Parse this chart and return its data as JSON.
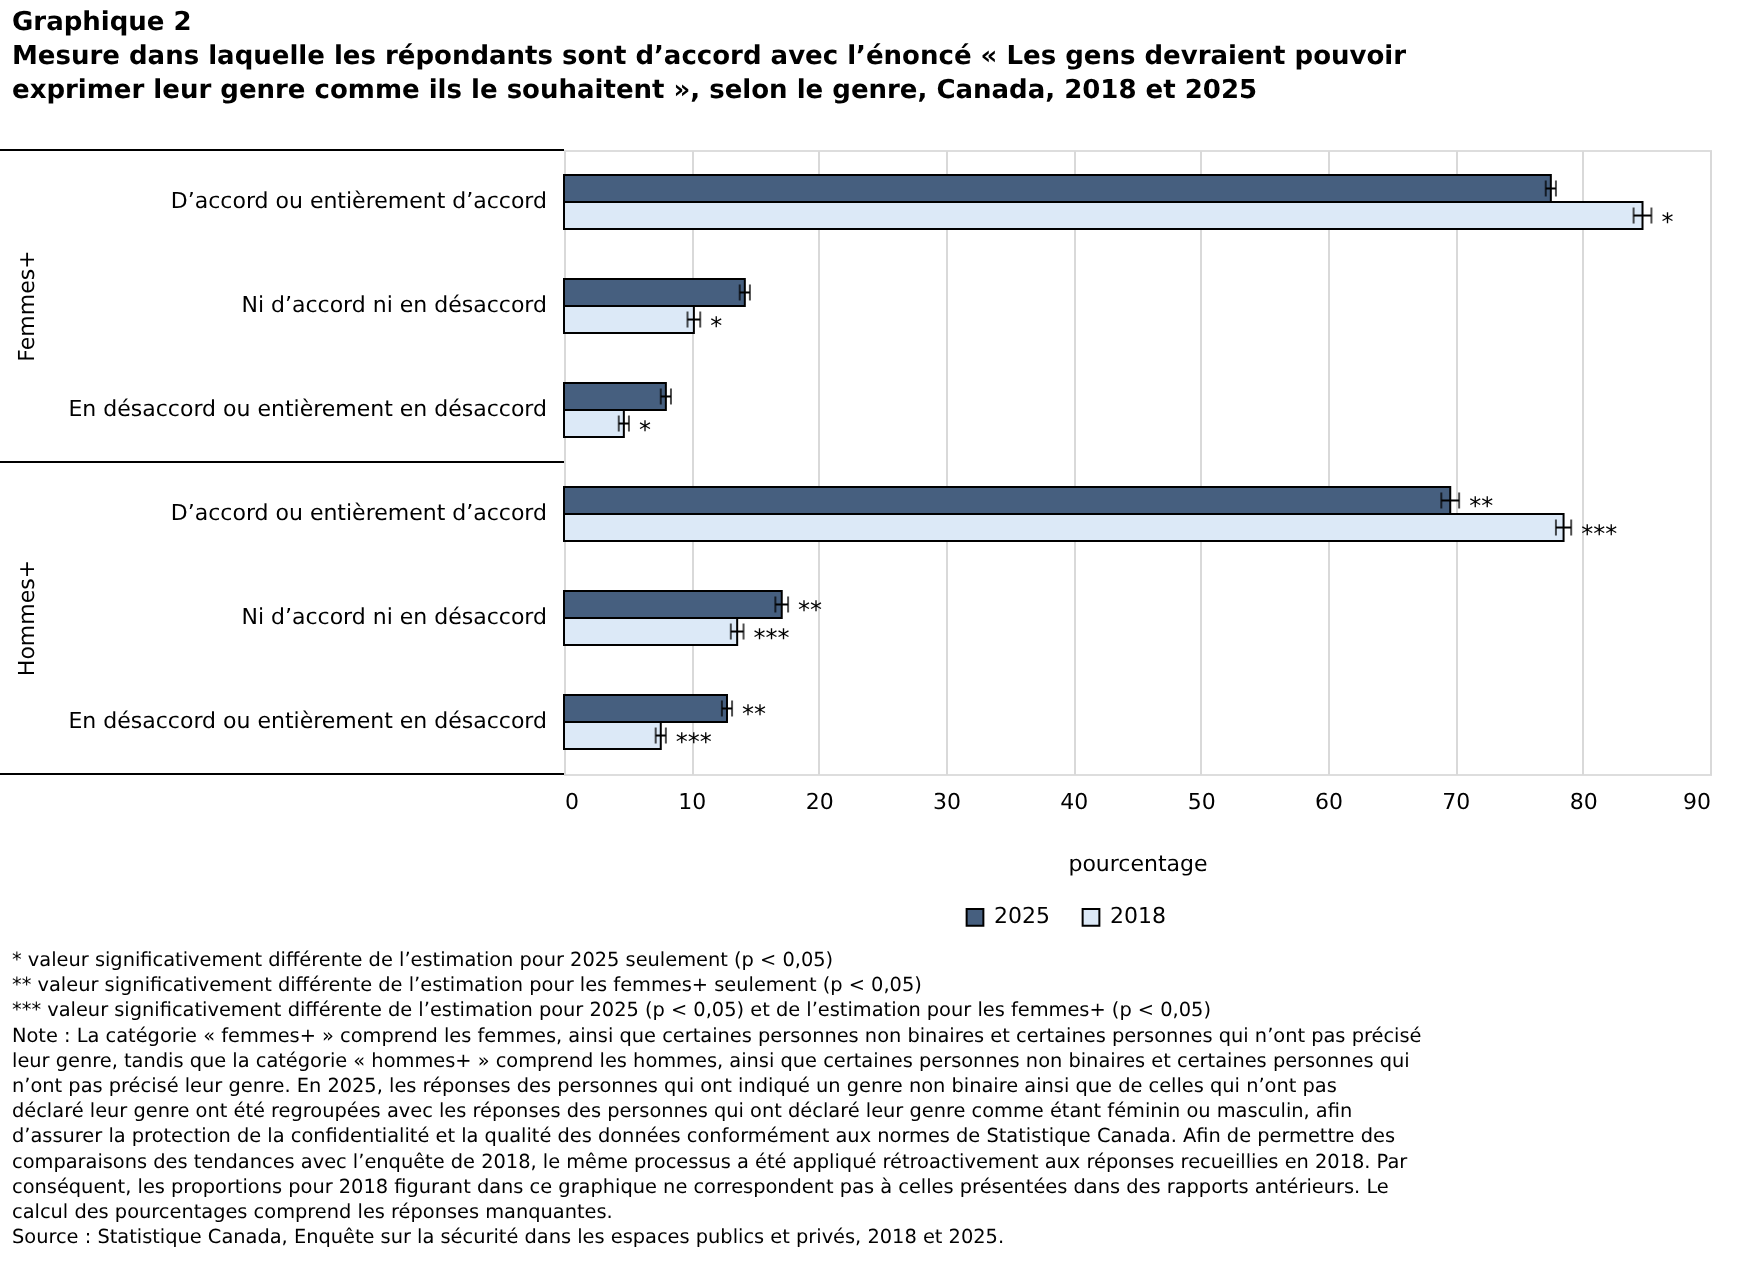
{
  "chart_data": {
    "type": "bar",
    "orientation": "horizontal",
    "title": "Graphique 2",
    "subtitle": "Mesure dans laquelle les répondants sont d’accord avec l’énoncé « Les gens devraient pouvoir exprimer leur genre comme ils le souhaitent », selon le genre, Canada, 2018 et 2025",
    "categories": [
      "D’accord ou entièrement d’accord",
      "Ni d’accord ni en désaccord",
      "En désaccord ou entièrement en désaccord",
      "D’accord ou entièrement d’accord",
      "Ni d’accord ni en désaccord",
      "En désaccord ou entièrement en désaccord"
    ],
    "series": [
      {
        "name": "2025",
        "color": "#465f7f",
        "values": [
          77.5,
          14.2,
          8.0,
          69.6,
          17.1,
          12.8
        ],
        "errors": [
          0.4,
          0.4,
          0.4,
          0.7,
          0.5,
          0.4
        ],
        "value_labels": [
          null,
          null,
          null,
          "**",
          "**",
          "**"
        ]
      },
      {
        "name": "2018",
        "color": "#dce9f7",
        "values": [
          84.7,
          10.2,
          4.7,
          78.5,
          13.6,
          7.6
        ],
        "errors": [
          0.7,
          0.5,
          0.4,
          0.6,
          0.5,
          0.4
        ],
        "value_labels": [
          "*",
          "*",
          "*",
          "***",
          "***",
          "***"
        ]
      }
    ],
    "xlabel": "pourcentage",
    "xlim": [
      0,
      90
    ],
    "xticks": [
      0,
      10,
      20,
      30,
      40,
      50,
      60,
      70,
      80,
      90
    ],
    "grid": "x",
    "legend": "bottom",
    "annotations": [
      "Femmes+",
      "Hommes+",
      "* valeur significativement différente de l’estimation pour 2025 seulement (p < 0,05)",
      "** valeur significativement différente de l’estimation pour les femmes+ seulement (p < 0,05)",
      "*** valeur significativement différente de l’estimation pour 2025 (p < 0,05) et de l’estimation pour les femmes+ (p < 0,05)",
      "Note : La catégorie « femmes+ » comprend les femmes, ainsi que certaines personnes non binaires et certaines personnes qui n’ont pas précisé leur genre, tandis que la catégorie « hommes+ » comprend les hommes, ainsi que certaines personnes non binaires et certaines personnes qui n’ont pas précisé leur genre. En 2025, les réponses des personnes qui ont indiqué un genre non binaire ainsi que de celles qui n’ont pas déclaré leur genre ont été regroupées avec les réponses des personnes qui ont déclaré leur genre comme étant féminin ou masculin, afin d’assurer la protection de la confidentialité et la qualité des données conformément aux normes de Statistique Canada. Afin de permettre des comparaisons des tendances avec l’enquête de 2018, le même processus a été appliqué rétroactivement aux réponses recueillies en 2018. Par conséquent, les proportions pour 2018 figurant dans ce graphique ne correspondent pas à celles présentées dans des rapports antérieurs. Le calcul des pourcentages comprend les réponses manquantes.",
      "Source : Statistique Canada, Enquête sur la sécurité dans les espaces publics et privés, 2018 et 2025."
    ]
  }
}
